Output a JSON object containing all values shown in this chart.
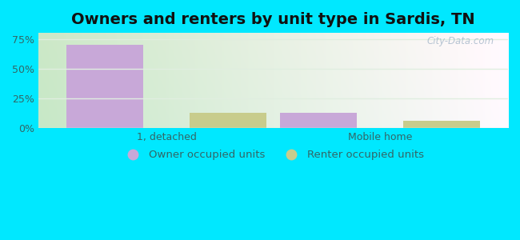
{
  "title": "Owners and renters by unit type in Sardis, TN",
  "categories": [
    "1, detached",
    "Mobile home"
  ],
  "owner_values": [
    70.0,
    13.0
  ],
  "renter_values": [
    13.0,
    6.0
  ],
  "owner_color": "#c8a8d8",
  "renter_color": "#c8cc8c",
  "bar_width": 0.18,
  "group_positions": [
    0.25,
    0.75
  ],
  "ylim": [
    0,
    80
  ],
  "yticks": [
    0,
    25,
    50,
    75
  ],
  "ytick_labels": [
    "0%",
    "25%",
    "50%",
    "75%"
  ],
  "outer_bg": "#00e8ff",
  "plot_bg_left": "#c8e8c0",
  "plot_bg_right": "#f0f8f8",
  "watermark": "City-Data.com",
  "title_fontsize": 14,
  "legend_labels": [
    "Owner occupied units",
    "Renter occupied units"
  ],
  "legend_text_color": "#336666",
  "tick_color": "#336666",
  "grid_color": "#e0eee0",
  "title_color": "#111111"
}
